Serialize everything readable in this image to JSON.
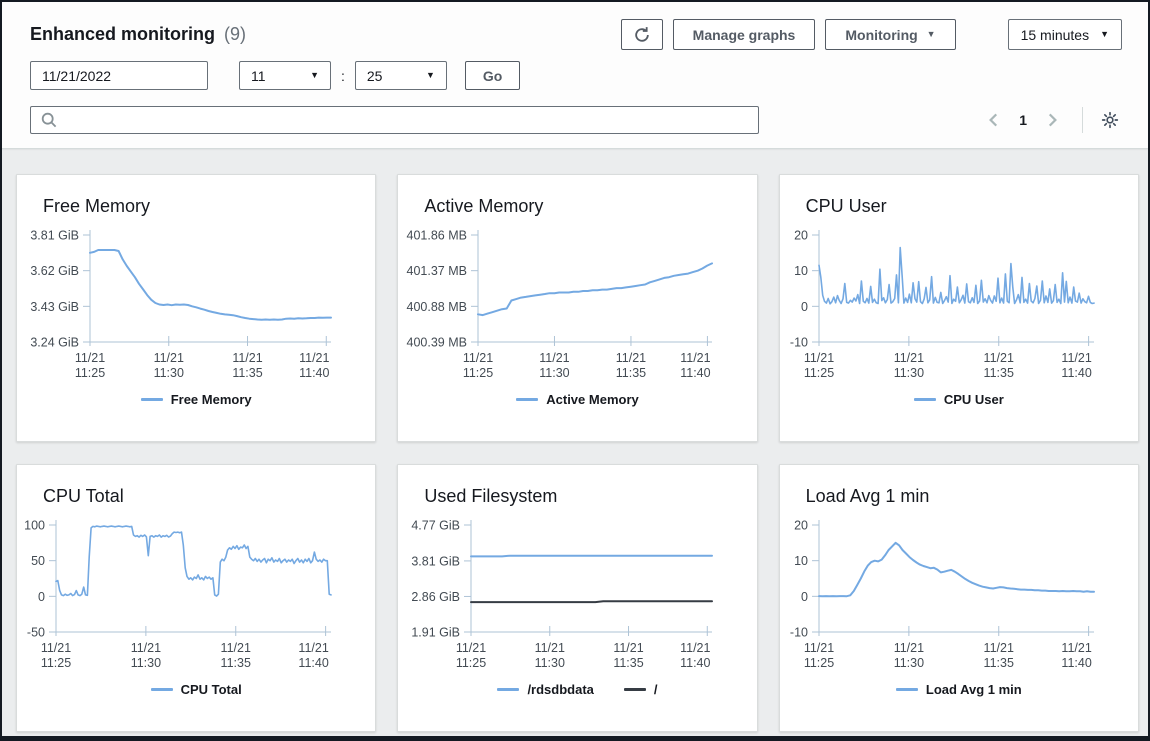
{
  "header": {
    "title": "Enhanced monitoring",
    "count": "(9)",
    "manage_graphs": "Manage graphs",
    "monitoring": "Monitoring",
    "time_range": "15 minutes",
    "date": "11/21/2022",
    "hour": "11",
    "time_separator": ":",
    "minute": "25",
    "go": "Go",
    "search_placeholder": "",
    "page": "1"
  },
  "icons": {
    "caret_down": "▼"
  },
  "style": {
    "accent_blue": "#74a9e2",
    "dark_series": "#363c44",
    "axis_color": "#aec3d6",
    "tick_text_color": "#434b53"
  },
  "chart_data": [
    {
      "type": "line",
      "title": "Free Memory",
      "xlim": [
        0,
        15.3
      ],
      "x_tick_values": [
        0,
        5,
        10,
        15
      ],
      "x_tick_labels": [
        [
          "11/21",
          "11:25"
        ],
        [
          "11/21",
          "11:30"
        ],
        [
          "11/21",
          "11:35"
        ],
        [
          "11/21",
          "11:40"
        ]
      ],
      "ylim": [
        3.24,
        3.81
      ],
      "y_tick_values": [
        3.81,
        3.62,
        3.43,
        3.24
      ],
      "y_tick_labels": [
        "3.81 GiB",
        "3.62 GiB",
        "3.43 GiB",
        "3.24 GiB"
      ],
      "grid": false,
      "legend_position": "bottom",
      "series": [
        {
          "name": "Free Memory",
          "color": "#74a9e2",
          "unit": "GiB",
          "values": [
            3.715,
            3.72,
            3.73,
            3.73,
            3.73,
            3.73,
            3.73,
            3.725,
            3.68,
            3.645,
            3.615,
            3.585,
            3.55,
            3.52,
            3.49,
            3.465,
            3.448,
            3.44,
            3.437,
            3.44,
            3.436,
            3.44,
            3.438,
            3.44,
            3.437,
            3.43,
            3.425,
            3.418,
            3.412,
            3.405,
            3.4,
            3.395,
            3.39,
            3.387,
            3.385,
            3.383,
            3.378,
            3.372,
            3.368,
            3.364,
            3.362,
            3.36,
            3.359,
            3.36,
            3.359,
            3.36,
            3.359,
            3.36,
            3.364,
            3.365,
            3.364,
            3.366,
            3.365,
            3.366,
            3.368,
            3.368,
            3.37,
            3.369,
            3.37,
            3.37
          ]
        }
      ]
    },
    {
      "type": "line",
      "title": "Active Memory",
      "xlim": [
        0,
        15.3
      ],
      "x_tick_values": [
        0,
        5,
        10,
        15
      ],
      "x_tick_labels": [
        [
          "11/21",
          "11:25"
        ],
        [
          "11/21",
          "11:30"
        ],
        [
          "11/21",
          "11:35"
        ],
        [
          "11/21",
          "11:40"
        ]
      ],
      "ylim": [
        400.39,
        401.86
      ],
      "y_tick_values": [
        401.86,
        401.37,
        400.88,
        400.39
      ],
      "y_tick_labels": [
        "401.86 MB",
        "401.37 MB",
        "400.88 MB",
        "400.39 MB"
      ],
      "grid": false,
      "legend_position": "bottom",
      "series": [
        {
          "name": "Active Memory",
          "color": "#74a9e2",
          "unit": "MB",
          "values": [
            400.77,
            400.76,
            400.78,
            400.8,
            400.82,
            400.84,
            400.85,
            400.96,
            400.98,
            401,
            401.01,
            401.02,
            401.03,
            401.04,
            401.05,
            401.06,
            401.06,
            401.07,
            401.07,
            401.07,
            401.08,
            401.08,
            401.09,
            401.09,
            401.1,
            401.1,
            401.11,
            401.11,
            401.12,
            401.13,
            401.13,
            401.14,
            401.15,
            401.16,
            401.17,
            401.18,
            401.21,
            401.23,
            401.25,
            401.27,
            401.28,
            401.3,
            401.31,
            401.32,
            401.33,
            401.35,
            401.37,
            401.4,
            401.44,
            401.47
          ]
        }
      ]
    },
    {
      "type": "line",
      "title": "CPU User",
      "xlim": [
        0,
        15.3
      ],
      "x_tick_values": [
        0,
        5,
        10,
        15
      ],
      "x_tick_labels": [
        [
          "11/21",
          "11:25"
        ],
        [
          "11/21",
          "11:30"
        ],
        [
          "11/21",
          "11:35"
        ],
        [
          "11/21",
          "11:40"
        ]
      ],
      "ylim": [
        -10,
        20
      ],
      "y_tick_values": [
        20,
        10,
        0,
        -10
      ],
      "y_tick_labels": [
        "20",
        "10",
        "0",
        "-10"
      ],
      "grid": false,
      "legend_position": "bottom",
      "series": [
        {
          "name": "CPU User",
          "color": "#74a9e2",
          "unit": "%",
          "values": [
            11.5,
            8.2,
            3.1,
            1.4,
            0.9,
            2.2,
            0.7,
            1.3,
            2.6,
            1,
            3,
            1.6,
            0.8,
            2.1,
            6.4,
            1.1,
            0.9,
            1.7,
            1.2,
            2.3,
            1.5,
            3.3,
            0.8,
            7.1,
            1.4,
            1,
            2.2,
            0.9,
            5.6,
            1.1,
            2,
            1,
            0.8,
            10.4,
            1.6,
            2.4,
            1,
            1.9,
            6.1,
            0.9,
            1.3,
            2.2,
            8.8,
            1,
            16.5,
            8.7,
            0.9,
            2.3,
            1.1,
            3.4,
            1,
            6.6,
            2.1,
            1.2,
            6.9,
            1.3,
            0.8,
            2.1,
            5.3,
            1,
            1.8,
            8.3,
            0.9,
            2.5,
            1.1,
            1,
            3.9,
            0.8,
            1.6,
            2.7,
            1.2,
            8.6,
            0.8,
            2,
            1.4,
            5.4,
            1,
            1.8,
            3.1,
            0.9,
            6.3,
            1.3,
            1,
            2.4,
            1.1,
            5.9,
            0.8,
            1.5,
            7.3,
            1.2,
            2.1,
            1,
            3,
            1.7,
            0.9,
            2.9,
            1.4,
            7.9,
            1,
            2.3,
            0.9,
            9.1,
            1.4,
            1,
            12,
            5.3,
            0.8,
            1.8,
            3.3,
            1,
            8.1,
            1.1,
            2,
            0.9,
            6.4,
            1.5,
            1,
            2.2,
            5.7,
            0.8,
            1.7,
            7.1,
            1,
            2.9,
            1.1,
            4.9,
            0.9,
            1.6,
            6.1,
            1.1,
            2,
            0.8,
            9.4,
            1.2,
            7,
            1,
            2.6,
            0.9,
            5.4,
            1.5,
            1.2,
            3.7,
            0.9,
            2.1,
            1.3,
            1,
            2.8,
            1.1,
            0.8,
            0.9
          ]
        }
      ]
    },
    {
      "type": "line",
      "title": "CPU Total",
      "xlim": [
        0,
        15.3
      ],
      "x_tick_values": [
        0,
        5,
        10,
        15
      ],
      "x_tick_labels": [
        [
          "11/21",
          "11:25"
        ],
        [
          "11/21",
          "11:30"
        ],
        [
          "11/21",
          "11:35"
        ],
        [
          "11/21",
          "11:40"
        ]
      ],
      "ylim": [
        -50,
        100
      ],
      "y_tick_values": [
        100,
        50,
        0,
        -50
      ],
      "y_tick_labels": [
        "100",
        "50",
        "0",
        "-50"
      ],
      "grid": false,
      "legend_position": "bottom",
      "series": [
        {
          "name": "CPU Total",
          "color": "#74a9e2",
          "unit": "%",
          "values": [
            21,
            22,
            8,
            2,
            1,
            3,
            1.5,
            2,
            4,
            1,
            2.5,
            8,
            2,
            1,
            3,
            13,
            2,
            1.5,
            55,
            96,
            98,
            97.5,
            98.5,
            98,
            97.5,
            98,
            98.5,
            98,
            97.5,
            98,
            98.5,
            98,
            97.5,
            98,
            98.5,
            98,
            97.5,
            98,
            98.5,
            98,
            97.5,
            98,
            86,
            84,
            85,
            83,
            85.5,
            84,
            86,
            83.5,
            57,
            84,
            85,
            83,
            85,
            84,
            86,
            83,
            85,
            84,
            85.5,
            83,
            84.5,
            88,
            90,
            89.5,
            90,
            89,
            90,
            72,
            40,
            28,
            24,
            26,
            23,
            27,
            25,
            30,
            24,
            26,
            23,
            28,
            25,
            27,
            24,
            26,
            2,
            0.5,
            3,
            48,
            52,
            50,
            55,
            65,
            68,
            66,
            70,
            67,
            71,
            66,
            69,
            68,
            72,
            67,
            70,
            55,
            52,
            50,
            53,
            49,
            52,
            48,
            51,
            53,
            47,
            52,
            50,
            54,
            48,
            51,
            49,
            53,
            47,
            50,
            52,
            48,
            51,
            49,
            52,
            46,
            50,
            53,
            48,
            51,
            47,
            52,
            49,
            53,
            47,
            50,
            62,
            52,
            49,
            51,
            48,
            52,
            50,
            50,
            3,
            2
          ]
        }
      ]
    },
    {
      "type": "line",
      "title": "Used Filesystem",
      "xlim": [
        0,
        15.3
      ],
      "x_tick_values": [
        0,
        5,
        10,
        15
      ],
      "x_tick_labels": [
        [
          "11/21",
          "11:25"
        ],
        [
          "11/21",
          "11:30"
        ],
        [
          "11/21",
          "11:35"
        ],
        [
          "11/21",
          "11:40"
        ]
      ],
      "ylim": [
        1.91,
        4.77
      ],
      "y_tick_values": [
        4.77,
        3.81,
        2.86,
        1.91
      ],
      "y_tick_labels": [
        "4.77 GiB",
        "3.81 GiB",
        "2.86 GiB",
        "1.91 GiB"
      ],
      "grid": false,
      "legend_position": "bottom",
      "series": [
        {
          "name": "/rdsdbdata",
          "color": "#74a9e2",
          "unit": "GiB",
          "values": [
            3.93,
            3.93,
            3.93,
            3.93,
            3.93,
            3.95,
            3.95,
            3.95,
            3.95,
            3.95,
            3.95,
            3.95,
            3.95,
            3.95,
            3.95,
            3.95,
            3.95,
            3.95,
            3.95,
            3.95,
            3.95,
            3.95,
            3.95,
            3.95,
            3.95,
            3.95,
            3.95,
            3.95,
            3.95,
            3.95,
            3.95,
            3.95
          ]
        },
        {
          "name": "/",
          "color": "#363c44",
          "unit": "GiB",
          "values": [
            2.71,
            2.71,
            2.71,
            2.71,
            2.71,
            2.71,
            2.71,
            2.71,
            2.71,
            2.71,
            2.71,
            2.71,
            2.71,
            2.71,
            2.71,
            2.71,
            2.71,
            2.73,
            2.73,
            2.73,
            2.73,
            2.73,
            2.73,
            2.73,
            2.73,
            2.73,
            2.73,
            2.73,
            2.73,
            2.73,
            2.73,
            2.73
          ]
        }
      ]
    },
    {
      "type": "line",
      "title": "Load Avg 1 min",
      "xlim": [
        0,
        15.3
      ],
      "x_tick_values": [
        0,
        5,
        10,
        15
      ],
      "x_tick_labels": [
        [
          "11/21",
          "11:25"
        ],
        [
          "11/21",
          "11:30"
        ],
        [
          "11/21",
          "11:35"
        ],
        [
          "11/21",
          "11:40"
        ]
      ],
      "ylim": [
        -10,
        20
      ],
      "y_tick_values": [
        20,
        10,
        0,
        -10
      ],
      "y_tick_labels": [
        "20",
        "10",
        "0",
        "-10"
      ],
      "grid": false,
      "legend_position": "bottom",
      "series": [
        {
          "name": "Load Avg 1 min",
          "color": "#74a9e2",
          "unit": "",
          "values": [
            0.06,
            0.05,
            0.07,
            0.05,
            0.06,
            0.05,
            0.07,
            0.06,
            0.05,
            0.3,
            1.5,
            3.2,
            5,
            7,
            8.6,
            9.6,
            10,
            9.8,
            10.3,
            11.5,
            13,
            14,
            15,
            14.3,
            13,
            12,
            11,
            10.2,
            9.5,
            8.9,
            8.5,
            8.2,
            7.9,
            8,
            7.5,
            6.7,
            6.9,
            7.2,
            7.4,
            6.9,
            6.3,
            5.6,
            4.9,
            4.3,
            3.8,
            3.4,
            3,
            2.7,
            2.5,
            2.3,
            2.2,
            2.4,
            2.6,
            2.5,
            2.3,
            2.2,
            2.1,
            2,
            1.9,
            1.9,
            1.8,
            1.8,
            1.7,
            1.7,
            1.6,
            1.6,
            1.5,
            1.5,
            1.5,
            1.4,
            1.5,
            1.4,
            1.4,
            1.5,
            1.4,
            1.4,
            1.3,
            1.4,
            1.3,
            1.3
          ]
        }
      ]
    }
  ]
}
